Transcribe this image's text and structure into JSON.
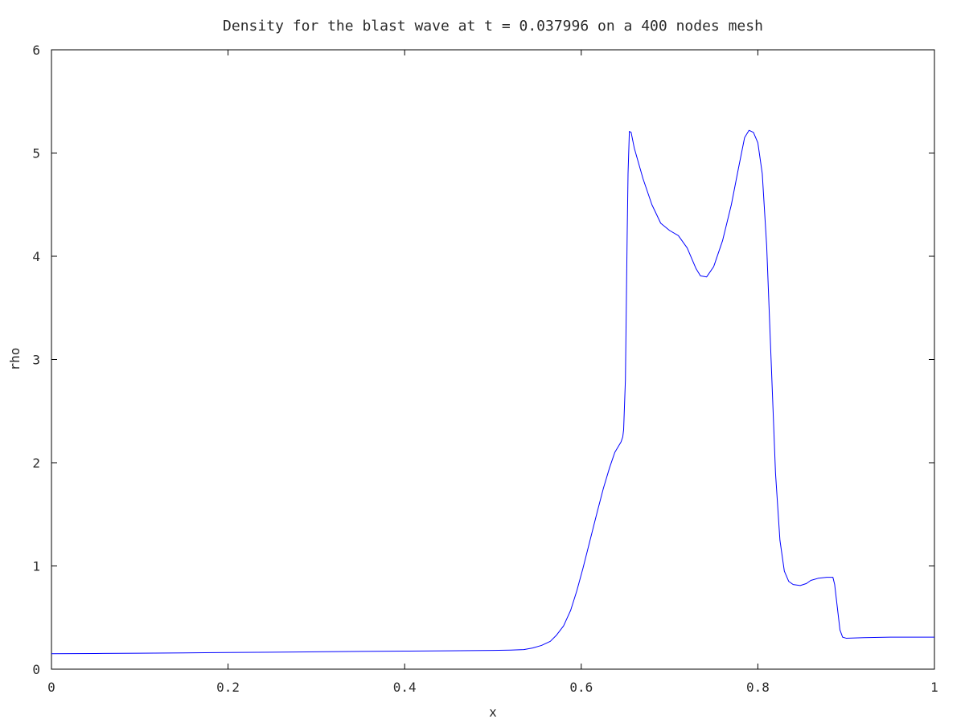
{
  "chart_data": {
    "type": "line",
    "title": "Density for the blast wave at t = 0.037996 on a 400 nodes mesh",
    "xlabel": "x",
    "ylabel": "rho",
    "xlim": [
      0,
      1
    ],
    "ylim": [
      0,
      6
    ],
    "x_ticks": [
      "0",
      "0.2",
      "0.4",
      "0.6",
      "0.8",
      "1"
    ],
    "y_ticks": [
      "0",
      "1",
      "2",
      "3",
      "4",
      "5",
      "6"
    ],
    "grid": false,
    "legend": false,
    "series": [
      {
        "color": "#0000ff",
        "points": [
          [
            0.0,
            0.15
          ],
          [
            0.05,
            0.152
          ],
          [
            0.1,
            0.155
          ],
          [
            0.15,
            0.158
          ],
          [
            0.2,
            0.161
          ],
          [
            0.25,
            0.164
          ],
          [
            0.3,
            0.168
          ],
          [
            0.35,
            0.172
          ],
          [
            0.4,
            0.175
          ],
          [
            0.45,
            0.178
          ],
          [
            0.5,
            0.182
          ],
          [
            0.52,
            0.185
          ],
          [
            0.535,
            0.19
          ],
          [
            0.545,
            0.205
          ],
          [
            0.555,
            0.23
          ],
          [
            0.565,
            0.27
          ],
          [
            0.572,
            0.33
          ],
          [
            0.58,
            0.42
          ],
          [
            0.588,
            0.57
          ],
          [
            0.595,
            0.76
          ],
          [
            0.602,
            0.98
          ],
          [
            0.61,
            1.25
          ],
          [
            0.618,
            1.52
          ],
          [
            0.625,
            1.75
          ],
          [
            0.632,
            1.95
          ],
          [
            0.638,
            2.1
          ],
          [
            0.645,
            2.2
          ],
          [
            0.647,
            2.25
          ],
          [
            0.648,
            2.32
          ],
          [
            0.65,
            2.8
          ],
          [
            0.651,
            3.5
          ],
          [
            0.652,
            4.2
          ],
          [
            0.653,
            4.8
          ],
          [
            0.6545,
            5.21
          ],
          [
            0.6565,
            5.2
          ],
          [
            0.66,
            5.05
          ],
          [
            0.67,
            4.75
          ],
          [
            0.68,
            4.5
          ],
          [
            0.69,
            4.32
          ],
          [
            0.7,
            4.25
          ],
          [
            0.71,
            4.2
          ],
          [
            0.72,
            4.08
          ],
          [
            0.73,
            3.88
          ],
          [
            0.735,
            3.81
          ],
          [
            0.742,
            3.8
          ],
          [
            0.75,
            3.9
          ],
          [
            0.76,
            4.15
          ],
          [
            0.77,
            4.5
          ],
          [
            0.778,
            4.85
          ],
          [
            0.785,
            5.15
          ],
          [
            0.79,
            5.22
          ],
          [
            0.795,
            5.2
          ],
          [
            0.8,
            5.1
          ],
          [
            0.805,
            4.8
          ],
          [
            0.81,
            4.1
          ],
          [
            0.815,
            3.0
          ],
          [
            0.82,
            1.9
          ],
          [
            0.825,
            1.25
          ],
          [
            0.83,
            0.95
          ],
          [
            0.835,
            0.85
          ],
          [
            0.84,
            0.82
          ],
          [
            0.848,
            0.81
          ],
          [
            0.855,
            0.83
          ],
          [
            0.86,
            0.86
          ],
          [
            0.868,
            0.88
          ],
          [
            0.878,
            0.89
          ],
          [
            0.885,
            0.89
          ],
          [
            0.887,
            0.82
          ],
          [
            0.89,
            0.6
          ],
          [
            0.893,
            0.38
          ],
          [
            0.896,
            0.31
          ],
          [
            0.9,
            0.3
          ],
          [
            0.92,
            0.305
          ],
          [
            0.95,
            0.31
          ],
          [
            1.0,
            0.31
          ]
        ]
      }
    ]
  }
}
